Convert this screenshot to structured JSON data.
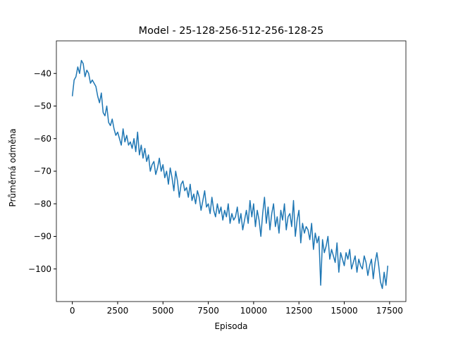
{
  "chart_data": {
    "type": "line",
    "title": "Model - 25-128-256-512-256-128-25",
    "x_label": "Episoda",
    "y_label": "Průměrná odměna",
    "x": [
      0,
      100,
      200,
      300,
      400,
      500,
      600,
      700,
      800,
      900,
      1000,
      1100,
      1200,
      1300,
      1400,
      1500,
      1600,
      1700,
      1800,
      1900,
      2000,
      2100,
      2200,
      2300,
      2400,
      2500,
      2600,
      2700,
      2800,
      2900,
      3000,
      3100,
      3200,
      3300,
      3400,
      3500,
      3600,
      3700,
      3800,
      3900,
      4000,
      4100,
      4200,
      4300,
      4400,
      4500,
      4600,
      4700,
      4800,
      4900,
      5000,
      5100,
      5200,
      5300,
      5400,
      5500,
      5600,
      5700,
      5800,
      5900,
      6000,
      6100,
      6200,
      6300,
      6400,
      6500,
      6600,
      6700,
      6800,
      6900,
      7000,
      7100,
      7200,
      7300,
      7400,
      7500,
      7600,
      7700,
      7800,
      7900,
      8000,
      8100,
      8200,
      8300,
      8400,
      8500,
      8600,
      8700,
      8800,
      8900,
      9000,
      9100,
      9200,
      9300,
      9400,
      9500,
      9600,
      9700,
      9800,
      9900,
      10000,
      10100,
      10200,
      10300,
      10400,
      10500,
      10600,
      10700,
      10800,
      10900,
      11000,
      11100,
      11200,
      11300,
      11400,
      11500,
      11600,
      11700,
      11800,
      11900,
      12000,
      12100,
      12200,
      12300,
      12400,
      12500,
      12600,
      12700,
      12800,
      12900,
      13000,
      13100,
      13200,
      13300,
      13400,
      13500,
      13600,
      13700,
      13800,
      13900,
      14000,
      14100,
      14200,
      14300,
      14400,
      14500,
      14600,
      14700,
      14800,
      14900,
      15000,
      15100,
      15200,
      15300,
      15400,
      15500,
      15600,
      15700,
      15800,
      15900,
      16000,
      16100,
      16200,
      16300,
      16400,
      16500,
      16600,
      16700,
      16800,
      16900,
      17000,
      17100,
      17200,
      17300,
      17400
    ],
    "series": [
      {
        "color": "#1f77b4",
        "values": [
          -47,
          -42,
          -41,
          -38,
          -40,
          -36,
          -37,
          -41,
          -39,
          -40,
          -43,
          -42,
          -43,
          -44,
          -47,
          -49,
          -46,
          -52,
          -53,
          -50,
          -55,
          -56,
          -54,
          -57,
          -59,
          -58,
          -60,
          -62,
          -57,
          -61,
          -59,
          -62,
          -61,
          -63,
          -60,
          -64,
          -58,
          -65,
          -62,
          -66,
          -63,
          -67,
          -65,
          -70,
          -68,
          -67,
          -71,
          -69,
          -66,
          -70,
          -68,
          -72,
          -70,
          -74,
          -69,
          -72,
          -76,
          -70,
          -73,
          -78,
          -74,
          -73,
          -76,
          -75,
          -78,
          -74,
          -79,
          -77,
          -80,
          -76,
          -78,
          -82,
          -79,
          -76,
          -81,
          -80,
          -83,
          -78,
          -82,
          -84,
          -80,
          -83,
          -81,
          -85,
          -82,
          -84,
          -80,
          -86,
          -83,
          -85,
          -84,
          -81,
          -86,
          -83,
          -88,
          -85,
          -82,
          -86,
          -79,
          -84,
          -80,
          -87,
          -82,
          -85,
          -90,
          -83,
          -78,
          -86,
          -81,
          -88,
          -83,
          -80,
          -87,
          -84,
          -89,
          -82,
          -85,
          -80,
          -88,
          -84,
          -83,
          -87,
          -79,
          -90,
          -85,
          -82,
          -92,
          -86,
          -89,
          -87,
          -88,
          -91,
          -86,
          -94,
          -89,
          -92,
          -90,
          -105,
          -91,
          -95,
          -93,
          -90,
          -97,
          -94,
          -96,
          -98,
          -92,
          -101,
          -95,
          -97,
          -99,
          -95,
          -97,
          -94,
          -100,
          -98,
          -96,
          -101,
          -97,
          -99,
          -100,
          -96,
          -98,
          -102,
          -99,
          -97,
          -103,
          -98,
          -95,
          -99,
          -104,
          -106,
          -101,
          -105,
          -99
        ]
      }
    ],
    "xlim": [
      -880,
      18400
    ],
    "ylim": [
      -110,
      -30
    ],
    "xticks": [
      0,
      2500,
      5000,
      7500,
      10000,
      12500,
      15000,
      17500
    ],
    "yticks": [
      {
        "value": -100,
        "label": "−100"
      },
      {
        "value": -90,
        "label": "−90"
      },
      {
        "value": -80,
        "label": "−80"
      },
      {
        "value": -70,
        "label": "−70"
      },
      {
        "value": -60,
        "label": "−60"
      },
      {
        "value": -50,
        "label": "−50"
      },
      {
        "value": -40,
        "label": "−40"
      }
    ]
  }
}
